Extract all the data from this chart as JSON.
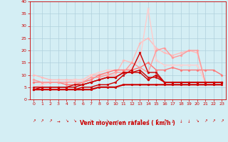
{
  "xlabel": "Vent moyen/en rafales ( km/h )",
  "xlim": [
    -0.5,
    23.5
  ],
  "ylim": [
    0,
    40
  ],
  "yticks": [
    0,
    5,
    10,
    15,
    20,
    25,
    30,
    35,
    40
  ],
  "xticks": [
    0,
    1,
    2,
    3,
    4,
    5,
    6,
    7,
    8,
    9,
    10,
    11,
    12,
    13,
    14,
    15,
    16,
    17,
    18,
    19,
    20,
    21,
    22,
    23
  ],
  "bg_color": "#d4eef4",
  "grid_color": "#b0d0dc",
  "lines": [
    {
      "x": [
        0,
        1,
        2,
        3,
        4,
        5,
        6,
        7,
        8,
        9,
        10,
        11,
        12,
        13,
        14,
        15,
        16,
        17,
        18,
        19,
        20,
        21,
        22,
        23
      ],
      "y": [
        4,
        4,
        4,
        4,
        4,
        4,
        4,
        4,
        5,
        5,
        5,
        6,
        6,
        6,
        6,
        6,
        6,
        6,
        6,
        6,
        6,
        6,
        6,
        6
      ],
      "color": "#cc0000",
      "lw": 1.5,
      "marker": "s",
      "ms": 2.0,
      "zorder": 5
    },
    {
      "x": [
        0,
        1,
        2,
        3,
        4,
        5,
        6,
        7,
        8,
        9,
        10,
        11,
        12,
        13,
        14,
        15,
        16,
        17,
        18,
        19,
        20,
        21,
        22,
        23
      ],
      "y": [
        4,
        4,
        4,
        4,
        4,
        4,
        5,
        5,
        6,
        6,
        7,
        10,
        12,
        19,
        11,
        11,
        7,
        7,
        7,
        7,
        7,
        7,
        7,
        7
      ],
      "color": "#cc0000",
      "lw": 1.0,
      "marker": "s",
      "ms": 2.0,
      "zorder": 4
    },
    {
      "x": [
        0,
        1,
        2,
        3,
        4,
        5,
        6,
        7,
        8,
        9,
        10,
        11,
        12,
        13,
        14,
        15,
        16,
        17,
        18,
        19,
        20,
        21,
        22,
        23
      ],
      "y": [
        4,
        5,
        5,
        5,
        5,
        5,
        6,
        7,
        8,
        9,
        9,
        11,
        11,
        11,
        8,
        10,
        7,
        7,
        7,
        7,
        7,
        7,
        7,
        7
      ],
      "color": "#cc0000",
      "lw": 1.0,
      "marker": "o",
      "ms": 2.0,
      "zorder": 4
    },
    {
      "x": [
        0,
        1,
        2,
        3,
        4,
        5,
        6,
        7,
        8,
        9,
        10,
        11,
        12,
        13,
        14,
        15,
        16,
        17,
        18,
        19,
        20,
        21,
        22,
        23
      ],
      "y": [
        5,
        5,
        5,
        5,
        5,
        6,
        6,
        7,
        8,
        9,
        9,
        11,
        11,
        12,
        9,
        9,
        7,
        7,
        7,
        7,
        7,
        7,
        7,
        7
      ],
      "color": "#cc0000",
      "lw": 1.0,
      "marker": "o",
      "ms": 1.5,
      "zorder": 4
    },
    {
      "x": [
        0,
        1,
        2,
        3,
        4,
        5,
        6,
        7,
        8,
        9,
        10,
        11,
        12,
        13,
        14,
        15,
        16,
        17,
        18,
        19,
        20,
        21,
        22,
        23
      ],
      "y": [
        7,
        7,
        7,
        7,
        6,
        6,
        7,
        8,
        10,
        11,
        12,
        12,
        12,
        13,
        15,
        12,
        12,
        13,
        12,
        12,
        12,
        12,
        12,
        10
      ],
      "color": "#ff7777",
      "lw": 1.0,
      "marker": "D",
      "ms": 1.5,
      "zorder": 3
    },
    {
      "x": [
        0,
        1,
        2,
        3,
        4,
        5,
        6,
        7,
        8,
        9,
        10,
        11,
        12,
        13,
        14,
        15,
        16,
        17,
        18,
        19,
        20,
        21,
        22,
        23
      ],
      "y": [
        8,
        7,
        7,
        7,
        7,
        7,
        7,
        9,
        9,
        10,
        11,
        11,
        15,
        13,
        11,
        20,
        21,
        17,
        18,
        20,
        20,
        7,
        7,
        7
      ],
      "color": "#ff9999",
      "lw": 1.0,
      "marker": "D",
      "ms": 1.5,
      "zorder": 3
    },
    {
      "x": [
        0,
        1,
        2,
        3,
        4,
        5,
        6,
        7,
        8,
        9,
        10,
        11,
        12,
        13,
        14,
        15,
        16,
        17,
        18,
        19,
        20,
        21,
        22,
        23
      ],
      "y": [
        10,
        9,
        8,
        8,
        8,
        8,
        8,
        10,
        10,
        10,
        10,
        16,
        15,
        23,
        25,
        21,
        19,
        18,
        19,
        20,
        19,
        7,
        7,
        7
      ],
      "color": "#ffbbbb",
      "lw": 1.0,
      "marker": "D",
      "ms": 1.5,
      "zorder": 2
    },
    {
      "x": [
        0,
        1,
        2,
        3,
        4,
        5,
        6,
        7,
        8,
        9,
        10,
        11,
        12,
        13,
        14,
        15,
        16,
        17,
        18,
        19,
        20,
        21,
        22,
        23
      ],
      "y": [
        5,
        6,
        7,
        7,
        7,
        8,
        8,
        10,
        11,
        12,
        12,
        12,
        13,
        16,
        37,
        16,
        14,
        14,
        14,
        14,
        14,
        7,
        7,
        7
      ],
      "color": "#ffcccc",
      "lw": 1.0,
      "marker": "x",
      "ms": 3.0,
      "zorder": 2
    }
  ],
  "wind_arrows": [
    "↗",
    "↗",
    "↗",
    "→",
    "↘",
    "↘",
    "↘",
    "↘",
    "↘",
    "↘",
    "→",
    "→",
    "↓",
    "↗",
    "↑",
    "↗",
    "↗",
    "↓",
    "↓",
    "↓",
    "↘",
    "↗",
    "↗",
    "↗"
  ],
  "axis_color": "#cc0000",
  "tick_color": "#cc0000",
  "label_color": "#cc0000"
}
